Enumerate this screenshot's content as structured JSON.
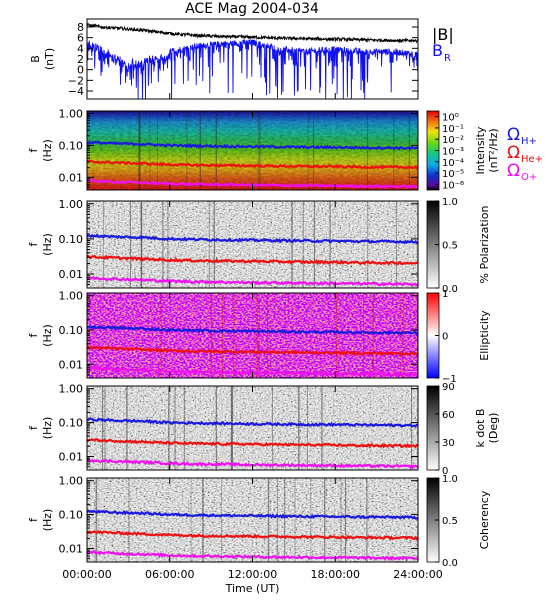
{
  "title": "ACE Mag 2004-034",
  "colors": {
    "total_B": "#000000",
    "B_R": "#1010ee",
    "H": "#1a1adf",
    "He": "#ee1010",
    "O": "#ee10ee"
  },
  "legend": {
    "B_total": "|B|",
    "B_R_main": "B",
    "B_R_sub": "R",
    "omega": "Ω",
    "H_sub": "H+",
    "He_sub": "He+",
    "O_sub": "O+"
  },
  "x_axis": {
    "label": "Time (UT)",
    "ticks": [
      "00:00:00",
      "06:00:00",
      "12:00:00",
      "18:00:00",
      "24:00:00"
    ],
    "range_hours": [
      0,
      24
    ]
  },
  "panel1": {
    "ylabel_main": "B",
    "ylabel_unit": "(nT)",
    "yticks": [
      "8",
      "6",
      "4",
      "2",
      "0",
      "−2",
      "−4"
    ],
    "ytick_values": [
      8,
      6,
      4,
      2,
      0,
      -2,
      -4
    ],
    "ylim": [
      -5.5,
      9.5
    ]
  },
  "freq_axis": {
    "ylabel_main": "f",
    "ylabel_unit": "(Hz)",
    "yticks": [
      "1.00",
      "0.10",
      "0.01"
    ],
    "ytick_values": [
      1.0,
      0.1,
      0.01
    ],
    "range_hz": [
      0.004,
      1.2
    ]
  },
  "colorbars": [
    {
      "title": "Intensity",
      "unit": "(nT²/Hz)",
      "ticks": [
        "10⁰",
        "10⁻¹",
        "10⁻²",
        "10⁻³",
        "10⁻⁴",
        "10⁻⁵",
        "10⁻⁶"
      ],
      "tick_values": [
        0,
        -1,
        -2,
        -3,
        -4,
        -5,
        -6
      ],
      "range": [
        -6.5,
        0.5
      ],
      "scheme": "rainbow"
    },
    {
      "title": "% Polarization",
      "ticks": [
        "1.0",
        "0.5",
        "0.0"
      ],
      "tick_values": [
        1.0,
        0.5,
        0.0
      ],
      "range": [
        0,
        1
      ],
      "scheme": "gray"
    },
    {
      "title": "Ellipticity",
      "ticks": [
        "1",
        "0",
        "−1"
      ],
      "tick_values": [
        1,
        0,
        -1
      ],
      "range": [
        -1,
        1
      ],
      "scheme": "bwr"
    },
    {
      "title": "k dot B",
      "unit": "(Deg)",
      "ticks": [
        "90",
        "60",
        "30",
        "0"
      ],
      "tick_values": [
        90,
        60,
        30,
        0
      ],
      "range": [
        0,
        90
      ],
      "scheme": "gray"
    },
    {
      "title": "Coherency",
      "ticks": [
        "1.0",
        "0.5",
        "0.0"
      ],
      "tick_values": [
        1.0,
        0.5,
        0.0
      ],
      "range": [
        0,
        1
      ],
      "scheme": "gray"
    }
  ],
  "chart_data": {
    "type": "line",
    "title": "ACE Mag 2004-034",
    "x_unit": "hours UT",
    "field_series": [
      {
        "name": "|B|",
        "x": [
          0,
          1,
          2,
          3,
          4,
          6,
          8,
          10,
          12,
          14,
          16,
          18,
          20,
          22,
          24
        ],
        "y": [
          8.4,
          8.0,
          7.8,
          7.6,
          7.4,
          6.8,
          6.4,
          6.2,
          6.1,
          5.9,
          5.8,
          5.7,
          5.6,
          5.5,
          5.4
        ]
      },
      {
        "name": "B_R",
        "x": [
          0,
          1,
          2,
          3,
          4,
          6,
          8,
          10,
          12,
          14,
          16,
          18,
          20,
          22,
          24
        ],
        "y": [
          5.5,
          4.5,
          3.0,
          1.5,
          2.0,
          3.5,
          4.5,
          5.0,
          5.2,
          4.0,
          3.5,
          4.0,
          3.5,
          3.5,
          3.0
        ]
      }
    ],
    "gyrofrequency_series": [
      {
        "name": "Ω H+",
        "x": [
          0,
          1,
          2,
          4,
          6,
          8,
          10,
          12,
          14,
          16,
          18,
          20,
          22,
          24
        ],
        "y": [
          0.125,
          0.12,
          0.115,
          0.11,
          0.1,
          0.097,
          0.094,
          0.092,
          0.09,
          0.088,
          0.087,
          0.085,
          0.084,
          0.082
        ]
      },
      {
        "name": "Ω He+",
        "x": [
          0,
          1,
          2,
          4,
          6,
          8,
          10,
          12,
          14,
          16,
          18,
          20,
          22,
          24
        ],
        "y": [
          0.031,
          0.03,
          0.029,
          0.027,
          0.025,
          0.024,
          0.0235,
          0.023,
          0.0225,
          0.022,
          0.0217,
          0.021,
          0.0208,
          0.0205
        ]
      },
      {
        "name": "Ω O+",
        "x": [
          0,
          1,
          2,
          4,
          6,
          8,
          10,
          12,
          14,
          16,
          18,
          20,
          22,
          24
        ],
        "y": [
          0.0078,
          0.0075,
          0.0072,
          0.0068,
          0.0063,
          0.006,
          0.0059,
          0.0057,
          0.0056,
          0.0055,
          0.0054,
          0.0053,
          0.0052,
          0.0051
        ]
      }
    ],
    "ylabel": "B (nT)",
    "xlabel": "Time (UT)",
    "ylim": [
      -5.5,
      9.5
    ]
  }
}
